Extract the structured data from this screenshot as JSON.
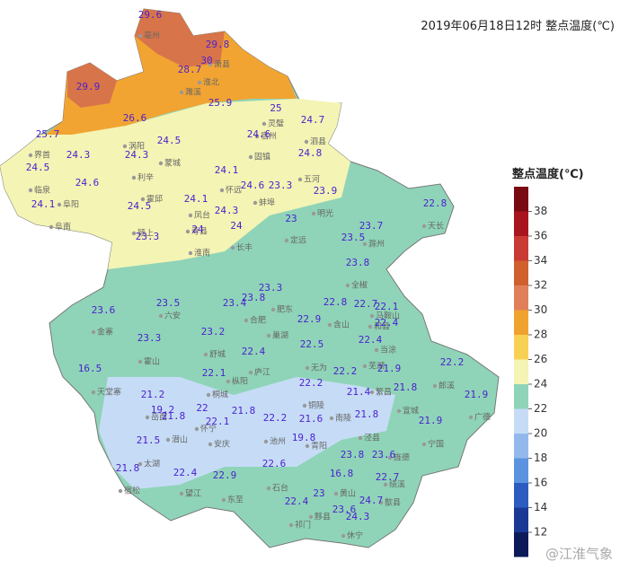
{
  "title": "2019年06月18日12时  整点温度(℃)",
  "watermark": "@江淮气象",
  "legend": {
    "title": "整点温度(℃)",
    "ticks": [
      38,
      36,
      34,
      32,
      30,
      28,
      26,
      24,
      22,
      20,
      18,
      16,
      14,
      12
    ],
    "colors": [
      "#7a0a12",
      "#a8151e",
      "#c93a34",
      "#d0602e",
      "#e0805a",
      "#f0a22e",
      "#f8d154",
      "#f4f4b4",
      "#8fd4b8",
      "#c6dcf6",
      "#93b9ec",
      "#5b93e0",
      "#2c5cc0",
      "#1a3994",
      "#0c1a5a"
    ]
  },
  "stations": [
    29.6,
    29.8,
    30,
    28.7,
    29.9,
    25.9,
    25,
    24.7,
    26.6,
    25.7,
    24.5,
    24.6,
    24.8,
    24.3,
    24.3,
    24.5,
    24.1,
    24.6,
    24.6,
    23.3,
    23.9,
    22.8,
    24.1,
    24.1,
    24.5,
    24.3,
    23,
    24,
    24,
    23.7,
    23.5,
    23.3,
    23.8,
    23.5,
    23.3,
    23.8,
    23.4,
    22.8,
    22.7,
    22.1,
    23.6,
    22.9,
    22.4,
    23.2,
    23.3,
    22.5,
    22.4,
    22.4,
    16.5,
    22.1,
    22.2,
    21.9,
    22.2,
    22.2,
    21.2,
    21.4,
    21.8,
    21.9,
    19.2,
    21.8,
    22,
    21.8,
    22.2,
    21.6,
    21.8,
    22.1,
    21.9,
    21.5,
    19.8,
    23.8,
    23.6,
    21.8,
    22.4,
    22.9,
    22.6,
    16.8,
    22.7,
    22.4,
    23,
    24.7,
    23.6,
    24.3
  ],
  "places": [
    "萧县",
    "淮北",
    "濉溪",
    "亳州",
    "宿州",
    "涡阳",
    "蒙城",
    "固镇",
    "泗县",
    "灵璧",
    "界首",
    "临泉",
    "阜阳",
    "阜南",
    "颍上",
    "利辛",
    "凤台",
    "怀远",
    "蚌埠",
    "五河",
    "明光",
    "天长",
    "寿县",
    "淮南",
    "长丰",
    "定远",
    "滁州",
    "全椒",
    "霍邱",
    "金寨",
    "六安",
    "合肥",
    "肥东",
    "巢湖",
    "含山",
    "和县",
    "马鞍山",
    "当涂",
    "舒城",
    "庐江",
    "无为",
    "芜湖",
    "繁昌",
    "宣城",
    "郎溪",
    "广德",
    "天堂寨",
    "霍山",
    "岳西",
    "桐城",
    "枞阳",
    "铜陵",
    "南陵",
    "宁国",
    "泾县",
    "潜山",
    "怀宁",
    "安庆",
    "池州",
    "青阳",
    "太湖",
    "宿松",
    "望江",
    "东至",
    "石台",
    "黄山",
    "旌德",
    "绩溪",
    "祁门",
    "黟县",
    "休宁",
    "歙县"
  ]
}
